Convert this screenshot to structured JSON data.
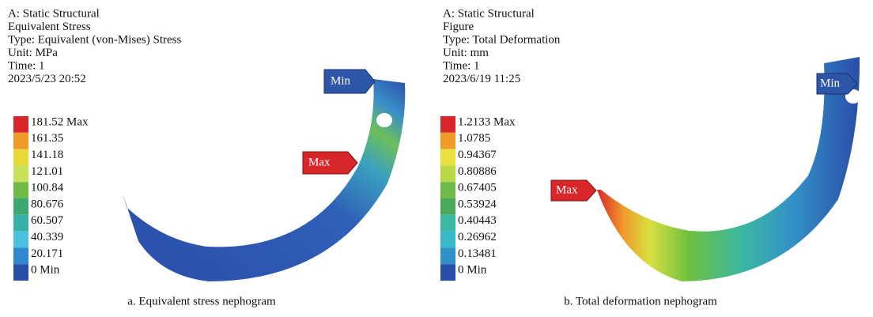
{
  "panels": [
    {
      "header": [
        "A: Static Structural",
        "Equivalent Stress",
        "Type: Equivalent (von-Mises) Stress",
        "Unit: MPa",
        "Time: 1",
        "2023/5/23 20:52"
      ],
      "legend": [
        "181.52 Max",
        "161.35",
        "141.18",
        "121.01",
        "100.84",
        "80.676",
        "60.507",
        "40.339",
        "20.171",
        "0 Min"
      ],
      "callouts": {
        "min": "Min",
        "max": "Max"
      },
      "caption": "a. Equivalent stress nephogram"
    },
    {
      "header": [
        "A: Static Structural",
        "Figure",
        "Type: Total Deformation",
        "Unit: mm",
        "Time: 1",
        "2023/6/19 11:25"
      ],
      "legend": [
        "1.2133 Max",
        "1.0785",
        "0.94367",
        "0.80886",
        "0.67405",
        "0.53924",
        "0.40443",
        "0.26962",
        "0.13481",
        "0 Min"
      ],
      "callouts": {
        "min": "Min",
        "max": "Max"
      },
      "caption": "b. Total deformation nephogram"
    }
  ]
}
